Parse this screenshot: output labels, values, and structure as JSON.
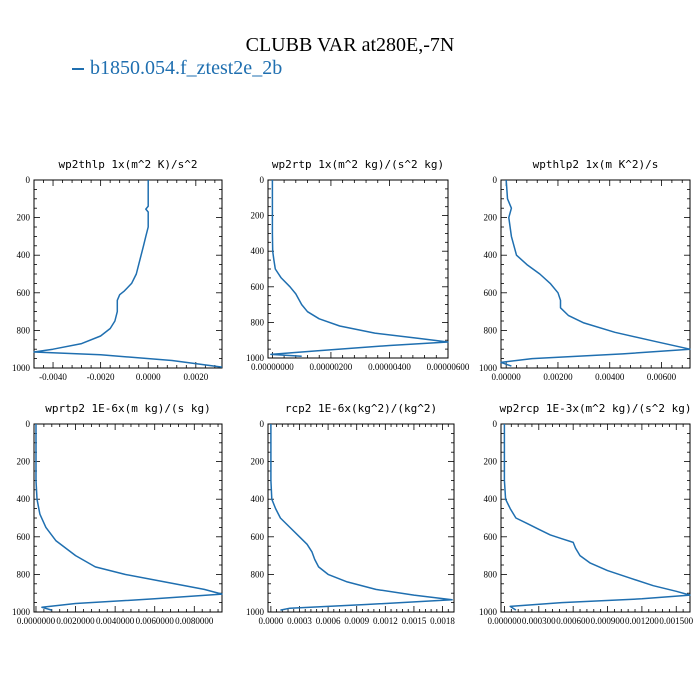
{
  "header": {
    "title": "CLUBB VAR at280E,-7N",
    "legend_label": "b1850.054.f_ztest2e_2b"
  },
  "colors": {
    "series": "#1f6fb0",
    "axes": "#000000"
  },
  "chart_data": [
    {
      "type": "line",
      "title": "wp2thlp  1x(m^2 K)/s^2",
      "series_name": "b1850.054.f_ztest2e_2b",
      "xlim": [
        -0.0048,
        0.0031
      ],
      "ylim": [
        1000,
        0
      ],
      "xticks": [
        -0.004,
        -0.002,
        0,
        0.002
      ],
      "xtick_labels": [
        "-0.0040",
        "-0.0020",
        "0.0000",
        "0.0020"
      ],
      "yticks": [
        0,
        200,
        400,
        600,
        800,
        1000
      ],
      "ytick_labels": [
        "0",
        "200",
        "400",
        "600",
        "800",
        "1000"
      ],
      "x": [
        0.0,
        0.0,
        -0.0001,
        0.0,
        0.0,
        0.0,
        -0.0001,
        -0.0002,
        -0.0003,
        -0.0004,
        -0.0005,
        -0.0007,
        -0.001,
        -0.0012,
        -0.0013,
        -0.0013,
        -0.0014,
        -0.0016,
        -0.002,
        -0.0028,
        -0.004,
        -0.0048,
        -0.002,
        0.001,
        0.0031
      ],
      "y": [
        0,
        140,
        155,
        170,
        200,
        250,
        300,
        350,
        400,
        450,
        500,
        550,
        590,
        610,
        640,
        700,
        750,
        790,
        830,
        870,
        900,
        915,
        930,
        960,
        995
      ]
    },
    {
      "type": "line",
      "title": "wp2rtp  1x(m^2 kg)/(s^2 kg)",
      "series_name": "b1850.054.f_ztest2e_2b",
      "xlim": [
        -1.5e-07,
        6e-06
      ],
      "ylim": [
        1000,
        0
      ],
      "xticks": [
        0,
        2e-06,
        4e-06,
        6e-06
      ],
      "xtick_labels": [
        "0.00000000",
        "0.00000200",
        "0.00000400",
        "0.00000600"
      ],
      "yticks": [
        0,
        200,
        400,
        600,
        800,
        1000
      ],
      "ytick_labels": [
        "0",
        "200",
        "400",
        "600",
        "800",
        "1000"
      ],
      "x": [
        0,
        0,
        1e-08,
        5e-08,
        1e-07,
        3e-07,
        6e-07,
        8e-07,
        1e-06,
        1.2e-06,
        1.6e-06,
        2.3e-06,
        3.5e-06,
        5e-06,
        6e-06,
        4e-06,
        1.5e-06,
        -5e-08,
        1e-06
      ],
      "y": [
        0,
        300,
        400,
        450,
        500,
        550,
        600,
        640,
        700,
        740,
        780,
        820,
        860,
        890,
        910,
        930,
        960,
        980,
        990
      ]
    },
    {
      "type": "line",
      "title": "wpthlp2  1x(m K^2)/s",
      "series_name": "b1850.054.f_ztest2e_2b",
      "xlim": [
        -0.0002,
        0.0071
      ],
      "ylim": [
        1000,
        0
      ],
      "xticks": [
        0,
        0.002,
        0.004,
        0.006
      ],
      "xtick_labels": [
        "0.00000",
        "0.00200",
        "0.00400",
        "0.00600"
      ],
      "yticks": [
        0,
        200,
        400,
        600,
        800,
        1000
      ],
      "ytick_labels": [
        "0",
        "200",
        "400",
        "600",
        "800",
        "1000"
      ],
      "x": [
        0,
        5e-05,
        0.0002,
        0.0001,
        0.0002,
        0.0004,
        0.0008,
        0.0013,
        0.0017,
        0.002,
        0.0021,
        0.0021,
        0.0024,
        0.003,
        0.0042,
        0.0058,
        0.0071,
        0.0045,
        0.001,
        -0.0002,
        0.0002
      ],
      "y": [
        0,
        100,
        150,
        200,
        300,
        400,
        450,
        500,
        550,
        600,
        640,
        680,
        720,
        760,
        810,
        860,
        900,
        925,
        950,
        970,
        990
      ]
    },
    {
      "type": "line",
      "title": "wprtp2  1E-6x(m kg)/(s kg)",
      "series_name": "b1850.054.f_ztest2e_2b",
      "xlim": [
        -0.0001,
        0.0094
      ],
      "ylim": [
        1000,
        0
      ],
      "xticks": [
        0,
        0.002,
        0.004,
        0.006,
        0.008
      ],
      "xtick_labels": [
        "0.0000000",
        "0.0020000",
        "0.0040000",
        "0.0060000",
        "0.0080000"
      ],
      "yticks": [
        0,
        200,
        400,
        600,
        800,
        1000
      ],
      "ytick_labels": [
        "0",
        "200",
        "400",
        "600",
        "800",
        "1000"
      ],
      "x": [
        0,
        0,
        5e-05,
        0.0002,
        0.0005,
        0.001,
        0.0015,
        0.002,
        0.003,
        0.0045,
        0.0065,
        0.0085,
        0.0094,
        0.006,
        0.002,
        0.0003,
        0.0008
      ],
      "y": [
        0,
        300,
        400,
        480,
        550,
        620,
        660,
        700,
        760,
        800,
        840,
        880,
        905,
        930,
        955,
        975,
        990
      ]
    },
    {
      "type": "line",
      "title": "rcp2  1E-6x(kg^2)/(kg^2)",
      "series_name": "b1850.054.f_ztest2e_2b",
      "xlim": [
        -3e-05,
        0.00192
      ],
      "ylim": [
        1000,
        0
      ],
      "xticks": [
        0,
        0.0003,
        0.0006,
        0.0009,
        0.0012,
        0.0015,
        0.0018
      ],
      "xtick_labels": [
        "0.0000",
        "0.0003",
        "0.0006",
        "0.0009",
        "0.0012",
        "0.0015",
        "0.0018"
      ],
      "yticks": [
        0,
        200,
        400,
        600,
        800,
        1000
      ],
      "ytick_labels": [
        "0",
        "200",
        "400",
        "600",
        "800",
        "1000"
      ],
      "x": [
        0,
        0,
        1e-05,
        5e-05,
        0.0001,
        0.0002,
        0.0003,
        0.00038,
        0.00043,
        0.00046,
        0.0005,
        0.0006,
        0.0008,
        0.0011,
        0.0015,
        0.0019,
        0.001,
        0.0002,
        0.0001
      ],
      "y": [
        0,
        300,
        400,
        450,
        500,
        550,
        600,
        640,
        680,
        720,
        760,
        800,
        840,
        880,
        910,
        935,
        960,
        980,
        990
      ]
    },
    {
      "type": "line",
      "title": "wp2rcp  1E-3x(m^2 kg)/(s^2 kg)",
      "series_name": "b1850.054.f_ztest2e_2b",
      "xlim": [
        -3e-05,
        0.00162
      ],
      "ylim": [
        1000,
        0
      ],
      "xticks": [
        0,
        0.0003,
        0.0006,
        0.0009,
        0.0012,
        0.0015
      ],
      "xtick_labels": [
        "0.000000",
        "0.000300",
        "0.000600",
        "0.000900",
        "0.001200",
        "0.001500"
      ],
      "yticks": [
        0,
        200,
        400,
        600,
        800,
        1000
      ],
      "ytick_labels": [
        "0",
        "200",
        "400",
        "600",
        "800",
        "1000"
      ],
      "x": [
        0,
        0,
        1e-05,
        5e-05,
        0.0001,
        0.0002,
        0.0003,
        0.0004,
        0.0005,
        0.0006,
        0.00062,
        0.00066,
        0.00075,
        0.0009,
        0.0011,
        0.0013,
        0.0015,
        0.00162,
        0.0012,
        0.0005,
        5e-05,
        0.0001
      ],
      "y": [
        0,
        300,
        400,
        450,
        500,
        530,
        560,
        590,
        610,
        630,
        660,
        700,
        740,
        780,
        820,
        860,
        890,
        910,
        930,
        950,
        970,
        990
      ]
    }
  ]
}
